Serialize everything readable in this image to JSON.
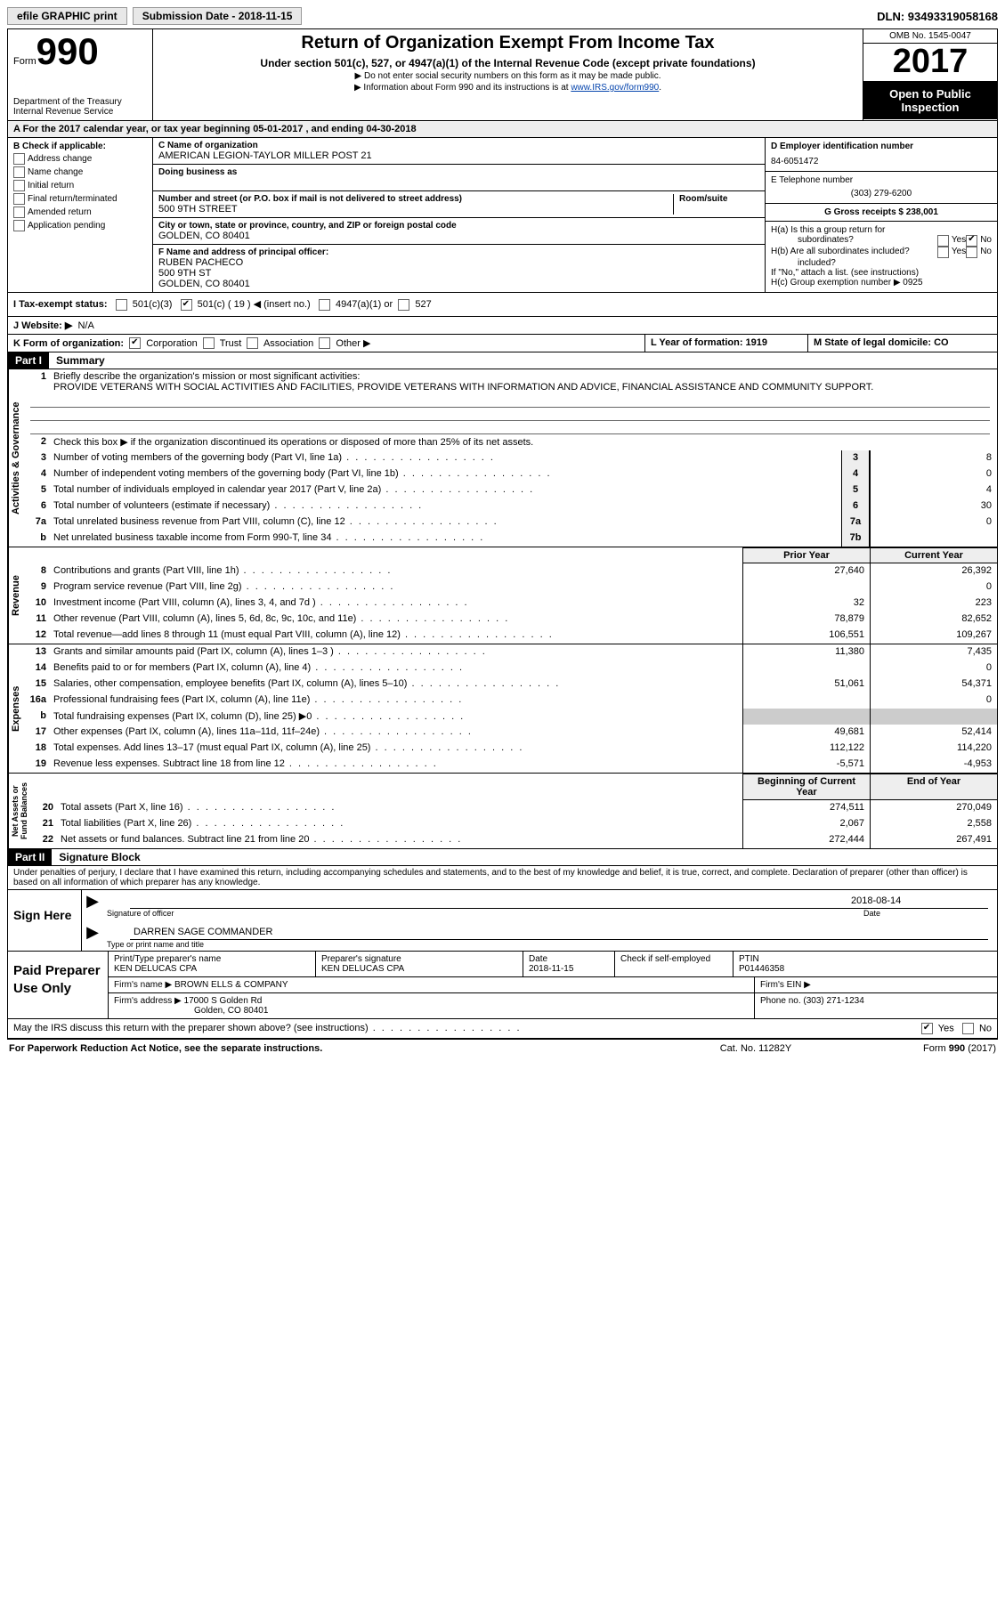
{
  "topbar": {
    "efile": "efile GRAPHIC print",
    "submission_label": "Submission Date - 2018-11-15",
    "dln": "DLN: 93493319058168"
  },
  "header": {
    "form_word": "Form",
    "form_number": "990",
    "dept": "Department of the Treasury",
    "irs": "Internal Revenue Service",
    "title": "Return of Organization Exempt From Income Tax",
    "subtitle": "Under section 501(c), 527, or 4947(a)(1) of the Internal Revenue Code (except private foundations)",
    "note1": "▶ Do not enter social security numbers on this form as it may be made public.",
    "note2_pre": "▶ Information about Form 990 and its instructions is at ",
    "note2_link": "www.IRS.gov/form990",
    "omb": "OMB No. 1545-0047",
    "year": "2017",
    "inspect1": "Open to Public",
    "inspect2": "Inspection"
  },
  "rowA": "A  For the 2017 calendar year, or tax year beginning 05-01-2017   , and ending 04-30-2018",
  "boxB": {
    "label": "B Check if applicable:",
    "opts": [
      "Address change",
      "Name change",
      "Initial return",
      "Final return/terminated",
      "Amended return",
      "Application pending"
    ]
  },
  "boxC": {
    "name_label": "C Name of organization",
    "name": "AMERICAN LEGION-TAYLOR MILLER POST 21",
    "dba_label": "Doing business as",
    "street_label": "Number and street (or P.O. box if mail is not delivered to street address)",
    "room_label": "Room/suite",
    "street": "500 9TH STREET",
    "city_label": "City or town, state or province, country, and ZIP or foreign postal code",
    "city": "GOLDEN, CO  80401",
    "officer_label": "F Name and address of principal officer:",
    "officer_name": "RUBEN PACHECO",
    "officer_street": "500 9TH ST",
    "officer_city": "GOLDEN, CO  80401"
  },
  "boxD": {
    "ein_label": "D Employer identification number",
    "ein": "84-6051472",
    "phone_label": "E Telephone number",
    "phone": "(303) 279-6200",
    "gross_label": "G Gross receipts $ 238,001"
  },
  "boxH": {
    "ha": "H(a)  Is this a group return for",
    "ha2": "subordinates?",
    "hb": "H(b)  Are all subordinates included?",
    "hb_note": "If \"No,\" attach a list. (see instructions)",
    "hc": "H(c)  Group exemption number ▶   0925",
    "yes": "Yes",
    "no": "No"
  },
  "rowI": {
    "label": "I  Tax-exempt status:",
    "c3": "501(c)(3)",
    "c": "501(c) ( 19 ) ◀ (insert no.)",
    "a1": "4947(a)(1) or",
    "s527": "527"
  },
  "rowJ": {
    "label": "J  Website: ▶",
    "val": "N/A"
  },
  "rowK": {
    "label": "K Form of organization:",
    "corp": "Corporation",
    "trust": "Trust",
    "assoc": "Association",
    "other": "Other ▶",
    "l": "L Year of formation: 1919",
    "m": "M State of legal domicile: CO"
  },
  "partI": {
    "header": "Part I",
    "title": "Summary"
  },
  "mission": {
    "label": "Briefly describe the organization's mission or most significant activities:",
    "text": "PROVIDE VETERANS WITH SOCIAL ACTIVITIES AND FACILITIES, PROVIDE VETERANS WITH INFORMATION AND ADVICE, FINANCIAL ASSISTANCE AND COMMUNITY SUPPORT."
  },
  "lines": {
    "l2": "Check this box ▶       if the organization discontinued its operations or disposed of more than 25% of its net assets.",
    "l3": {
      "desc": "Number of voting members of the governing body (Part VI, line 1a)",
      "box": "3",
      "val": "8"
    },
    "l4": {
      "desc": "Number of independent voting members of the governing body (Part VI, line 1b)",
      "box": "4",
      "val": "0"
    },
    "l5": {
      "desc": "Total number of individuals employed in calendar year 2017 (Part V, line 2a)",
      "box": "5",
      "val": "4"
    },
    "l6": {
      "desc": "Total number of volunteers (estimate if necessary)",
      "box": "6",
      "val": "30"
    },
    "l7a": {
      "desc": "Total unrelated business revenue from Part VIII, column (C), line 12",
      "box": "7a",
      "val": "0"
    },
    "l7b": {
      "desc": "Net unrelated business taxable income from Form 990-T, line 34",
      "box": "7b",
      "val": ""
    }
  },
  "fin_hdr": {
    "prior": "Prior Year",
    "current": "Current Year"
  },
  "rev": [
    {
      "n": "8",
      "d": "Contributions and grants (Part VIII, line 1h)",
      "p": "27,640",
      "c": "26,392"
    },
    {
      "n": "9",
      "d": "Program service revenue (Part VIII, line 2g)",
      "p": "",
      "c": "0"
    },
    {
      "n": "10",
      "d": "Investment income (Part VIII, column (A), lines 3, 4, and 7d )",
      "p": "32",
      "c": "223"
    },
    {
      "n": "11",
      "d": "Other revenue (Part VIII, column (A), lines 5, 6d, 8c, 9c, 10c, and 11e)",
      "p": "78,879",
      "c": "82,652"
    },
    {
      "n": "12",
      "d": "Total revenue—add lines 8 through 11 (must equal Part VIII, column (A), line 12)",
      "p": "106,551",
      "c": "109,267"
    }
  ],
  "exp": [
    {
      "n": "13",
      "d": "Grants and similar amounts paid (Part IX, column (A), lines 1–3 )",
      "p": "11,380",
      "c": "7,435"
    },
    {
      "n": "14",
      "d": "Benefits paid to or for members (Part IX, column (A), line 4)",
      "p": "",
      "c": "0"
    },
    {
      "n": "15",
      "d": "Salaries, other compensation, employee benefits (Part IX, column (A), lines 5–10)",
      "p": "51,061",
      "c": "54,371"
    },
    {
      "n": "16a",
      "d": "Professional fundraising fees (Part IX, column (A), line 11e)",
      "p": "",
      "c": "0"
    },
    {
      "n": "b",
      "d": "Total fundraising expenses (Part IX, column (D), line 25) ▶0",
      "p": "SHADE",
      "c": "SHADE"
    },
    {
      "n": "17",
      "d": "Other expenses (Part IX, column (A), lines 11a–11d, 11f–24e)",
      "p": "49,681",
      "c": "52,414"
    },
    {
      "n": "18",
      "d": "Total expenses. Add lines 13–17 (must equal Part IX, column (A), line 25)",
      "p": "112,122",
      "c": "114,220"
    },
    {
      "n": "19",
      "d": "Revenue less expenses. Subtract line 18 from line 12",
      "p": "-5,571",
      "c": "-4,953"
    }
  ],
  "na_hdr": {
    "prior": "Beginning of Current Year",
    "current": "End of Year"
  },
  "na": [
    {
      "n": "20",
      "d": "Total assets (Part X, line 16)",
      "p": "274,511",
      "c": "270,049"
    },
    {
      "n": "21",
      "d": "Total liabilities (Part X, line 26)",
      "p": "2,067",
      "c": "2,558"
    },
    {
      "n": "22",
      "d": "Net assets or fund balances. Subtract line 21 from line 20",
      "p": "272,444",
      "c": "267,491"
    }
  ],
  "vert": {
    "ag": "Activities & Governance",
    "rev": "Revenue",
    "exp": "Expenses",
    "na": "Net Assets or\nFund Balances"
  },
  "partII": {
    "header": "Part II",
    "title": "Signature Block"
  },
  "penalty": "Under penalties of perjury, I declare that I have examined this return, including accompanying schedules and statements, and to the best of my knowledge and belief, it is true, correct, and complete. Declaration of preparer (other than officer) is based on all information of which preparer has any knowledge.",
  "sign": {
    "here": "Sign Here",
    "sig_label": "Signature of officer",
    "date_label": "Date",
    "date": "2018-08-14",
    "name": "DARREN SAGE COMMANDER",
    "name_label": "Type or print name and title"
  },
  "prep": {
    "label": "Paid Preparer Use Only",
    "name_label": "Print/Type preparer's name",
    "name": "KEN DELUCAS CPA",
    "sig_label": "Preparer's signature",
    "sig": "KEN DELUCAS CPA",
    "date_label": "Date",
    "date": "2018-11-15",
    "check_label": "Check        if self-employed",
    "ptin_label": "PTIN",
    "ptin": "P01446358",
    "firm_name_label": "Firm's name     ▶",
    "firm_name": "BROWN ELLS & COMPANY",
    "firm_ein_label": "Firm's EIN ▶",
    "firm_addr_label": "Firm's address ▶",
    "firm_addr1": "17000 S Golden Rd",
    "firm_addr2": "Golden, CO  80401",
    "firm_phone_label": "Phone no. (303) 271-1234"
  },
  "discuss": {
    "q": "May the IRS discuss this return with the preparer shown above? (see instructions)",
    "yes": "Yes",
    "no": "No"
  },
  "footer": {
    "left": "For Paperwork Reduction Act Notice, see the separate instructions.",
    "mid": "Cat. No. 11282Y",
    "right": "Form 990 (2017)"
  }
}
